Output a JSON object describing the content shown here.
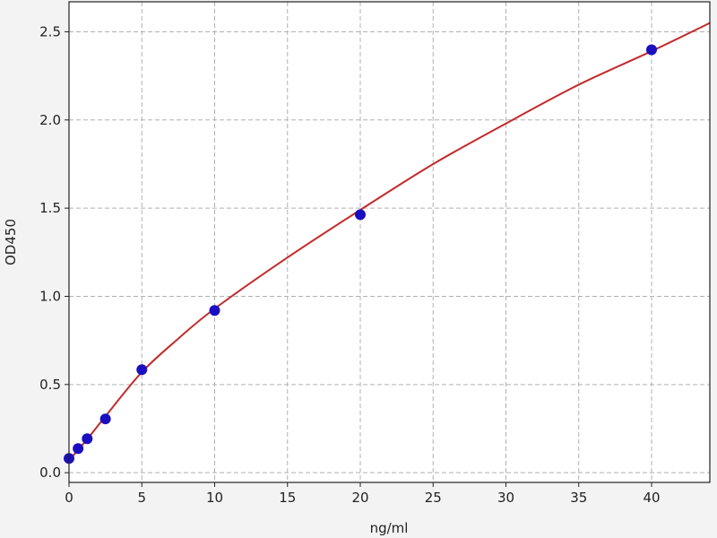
{
  "chart_data": {
    "type": "scatter",
    "title": "",
    "xlabel": "ng/ml",
    "ylabel": "OD450",
    "xlim": [
      0,
      44
    ],
    "ylim": [
      -0.055,
      2.67
    ],
    "grid": true,
    "x_ticks": [
      "0",
      "5",
      "10",
      "15",
      "20",
      "25",
      "30",
      "35",
      "40"
    ],
    "y_ticks": [
      "0.0",
      "0.5",
      "1.0",
      "1.5",
      "2.0",
      "2.5"
    ],
    "series": [
      {
        "kind": "points",
        "color": "#1a0fc0",
        "x": [
          0,
          0.625,
          1.25,
          2.5,
          5,
          10,
          20,
          40
        ],
        "y": [
          0.081,
          0.137,
          0.193,
          0.305,
          0.584,
          0.92,
          1.463,
          2.398
        ]
      },
      {
        "kind": "fit-line",
        "color": "#c42a2a",
        "x": [
          0,
          1.25,
          2.5,
          5,
          7.5,
          10,
          15,
          20,
          25,
          30,
          35,
          40,
          44
        ],
        "y": [
          0.07,
          0.19,
          0.32,
          0.57,
          0.76,
          0.93,
          1.22,
          1.49,
          1.75,
          1.98,
          2.2,
          2.39,
          2.55
        ]
      }
    ]
  }
}
